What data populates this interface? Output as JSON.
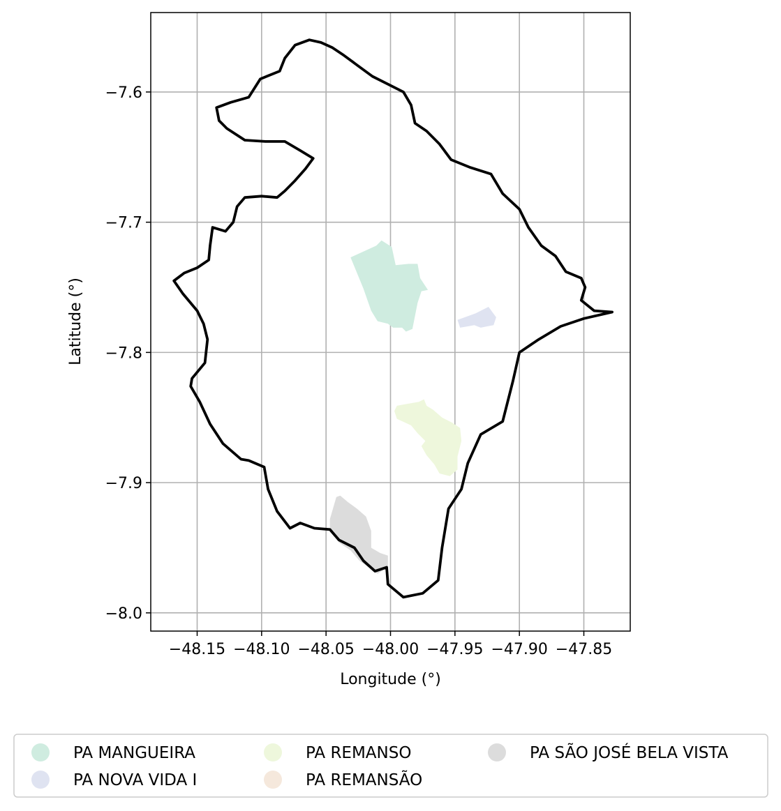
{
  "chart_data": {
    "type": "map",
    "xlabel": "Longitude (°)",
    "ylabel": "Latitude (°)",
    "xlim": [
      -48.186,
      -47.814
    ],
    "ylim": [
      -8.014,
      -7.539
    ],
    "grid": true,
    "x_ticks": [
      {
        "value": -48.15,
        "label": "−48.15"
      },
      {
        "value": -48.1,
        "label": "−48.10"
      },
      {
        "value": -48.05,
        "label": "−48.05"
      },
      {
        "value": -48.0,
        "label": "−48.00"
      },
      {
        "value": -47.95,
        "label": "−47.95"
      },
      {
        "value": -47.9,
        "label": "−47.90"
      },
      {
        "value": -47.85,
        "label": "−47.85"
      }
    ],
    "y_ticks": [
      {
        "value": -7.6,
        "label": "−7.6"
      },
      {
        "value": -7.7,
        "label": "−7.7"
      },
      {
        "value": -7.8,
        "label": "−7.8"
      },
      {
        "value": -7.9,
        "label": "−7.9"
      },
      {
        "value": -8.0,
        "label": "−8.0"
      }
    ],
    "legend_placement": "bottom",
    "boundary": {
      "color": "#000000",
      "coords": [
        [
          -48.063,
          -7.56
        ],
        [
          -48.054,
          -7.562
        ],
        [
          -48.045,
          -7.566
        ],
        [
          -48.036,
          -7.572
        ],
        [
          -48.025,
          -7.58
        ],
        [
          -48.014,
          -7.588
        ],
        [
          -48.002,
          -7.594
        ],
        [
          -47.99,
          -7.6
        ],
        [
          -47.984,
          -7.61
        ],
        [
          -47.981,
          -7.624
        ],
        [
          -47.972,
          -7.63
        ],
        [
          -47.962,
          -7.64
        ],
        [
          -47.953,
          -7.652
        ],
        [
          -47.938,
          -7.658
        ],
        [
          -47.922,
          -7.663
        ],
        [
          -47.913,
          -7.678
        ],
        [
          -47.9,
          -7.69
        ],
        [
          -47.893,
          -7.704
        ],
        [
          -47.883,
          -7.718
        ],
        [
          -47.872,
          -7.726
        ],
        [
          -47.864,
          -7.738
        ],
        [
          -47.852,
          -7.743
        ],
        [
          -47.849,
          -7.75
        ],
        [
          -47.852,
          -7.76
        ],
        [
          -47.842,
          -7.768
        ],
        [
          -47.828,
          -7.769
        ],
        [
          -47.85,
          -7.774
        ],
        [
          -47.868,
          -7.78
        ],
        [
          -47.885,
          -7.79
        ],
        [
          -47.9,
          -7.8
        ],
        [
          -47.905,
          -7.822
        ],
        [
          -47.913,
          -7.853
        ],
        [
          -47.93,
          -7.863
        ],
        [
          -47.94,
          -7.885
        ],
        [
          -47.945,
          -7.905
        ],
        [
          -47.955,
          -7.92
        ],
        [
          -47.96,
          -7.95
        ],
        [
          -47.963,
          -7.975
        ],
        [
          -47.975,
          -7.985
        ],
        [
          -47.99,
          -7.988
        ],
        [
          -48.002,
          -7.978
        ],
        [
          -48.003,
          -7.965
        ],
        [
          -48.012,
          -7.968
        ],
        [
          -48.021,
          -7.96
        ],
        [
          -48.028,
          -7.95
        ],
        [
          -48.04,
          -7.944
        ],
        [
          -48.047,
          -7.936
        ],
        [
          -48.059,
          -7.935
        ],
        [
          -48.07,
          -7.931
        ],
        [
          -48.078,
          -7.935
        ],
        [
          -48.088,
          -7.922
        ],
        [
          -48.095,
          -7.905
        ],
        [
          -48.098,
          -7.888
        ],
        [
          -48.11,
          -7.883
        ],
        [
          -48.116,
          -7.882
        ],
        [
          -48.13,
          -7.87
        ],
        [
          -48.14,
          -7.855
        ],
        [
          -48.148,
          -7.838
        ],
        [
          -48.155,
          -7.826
        ],
        [
          -48.154,
          -7.82
        ],
        [
          -48.144,
          -7.808
        ],
        [
          -48.142,
          -7.79
        ],
        [
          -48.145,
          -7.778
        ],
        [
          -48.15,
          -7.768
        ],
        [
          -48.161,
          -7.755
        ],
        [
          -48.168,
          -7.745
        ],
        [
          -48.16,
          -7.739
        ],
        [
          -48.15,
          -7.735
        ],
        [
          -48.141,
          -7.729
        ],
        [
          -48.14,
          -7.718
        ],
        [
          -48.138,
          -7.704
        ],
        [
          -48.128,
          -7.707
        ],
        [
          -48.122,
          -7.7
        ],
        [
          -48.119,
          -7.688
        ],
        [
          -48.113,
          -7.681
        ],
        [
          -48.1,
          -7.68
        ],
        [
          -48.088,
          -7.681
        ],
        [
          -48.082,
          -7.676
        ],
        [
          -48.074,
          -7.668
        ],
        [
          -48.066,
          -7.659
        ],
        [
          -48.06,
          -7.651
        ],
        [
          -48.07,
          -7.645
        ],
        [
          -48.082,
          -7.638
        ],
        [
          -48.097,
          -7.638
        ],
        [
          -48.113,
          -7.637
        ],
        [
          -48.127,
          -7.628
        ],
        [
          -48.133,
          -7.622
        ],
        [
          -48.135,
          -7.612
        ],
        [
          -48.124,
          -7.608
        ],
        [
          -48.11,
          -7.604
        ],
        [
          -48.101,
          -7.59
        ],
        [
          -48.086,
          -7.584
        ],
        [
          -48.082,
          -7.574
        ],
        [
          -48.074,
          -7.564
        ]
      ]
    },
    "series": [
      {
        "name": "PA MANGUEIRA",
        "color": "#cfece0",
        "coords": [
          [
            -48.031,
            -7.727
          ],
          [
            -48.011,
            -7.718
          ],
          [
            -48.007,
            -7.714
          ],
          [
            -47.999,
            -7.719
          ],
          [
            -47.996,
            -7.733
          ],
          [
            -47.986,
            -7.732
          ],
          [
            -47.979,
            -7.732
          ],
          [
            -47.977,
            -7.743
          ],
          [
            -47.971,
            -7.752
          ],
          [
            -47.976,
            -7.753
          ],
          [
            -47.979,
            -7.762
          ],
          [
            -47.983,
            -7.782
          ],
          [
            -47.988,
            -7.784
          ],
          [
            -47.991,
            -7.781
          ],
          [
            -47.998,
            -7.781
          ],
          [
            -48.002,
            -7.778
          ],
          [
            -48.01,
            -7.776
          ],
          [
            -48.015,
            -7.768
          ],
          [
            -48.021,
            -7.751
          ]
        ]
      },
      {
        "name": "PA NOVA VIDA I",
        "color": "#dfe3f1",
        "coords": [
          [
            -47.948,
            -7.775
          ],
          [
            -47.934,
            -7.77
          ],
          [
            -47.924,
            -7.765
          ],
          [
            -47.918,
            -7.773
          ],
          [
            -47.92,
            -7.779
          ],
          [
            -47.925,
            -7.78
          ],
          [
            -47.93,
            -7.781
          ],
          [
            -47.935,
            -7.779
          ],
          [
            -47.94,
            -7.78
          ],
          [
            -47.946,
            -7.781
          ]
        ]
      },
      {
        "name": "PA REMANSO",
        "color": "#eef7dc",
        "coords": [
          [
            -47.99,
            -7.84
          ],
          [
            -47.978,
            -7.838
          ],
          [
            -47.974,
            -7.836
          ],
          [
            -47.972,
            -7.841
          ],
          [
            -47.967,
            -7.844
          ],
          [
            -47.96,
            -7.85
          ],
          [
            -47.952,
            -7.854
          ],
          [
            -47.946,
            -7.858
          ],
          [
            -47.945,
            -7.868
          ],
          [
            -47.948,
            -7.88
          ],
          [
            -47.948,
            -7.89
          ],
          [
            -47.954,
            -7.895
          ],
          [
            -47.962,
            -7.893
          ],
          [
            -47.966,
            -7.886
          ],
          [
            -47.972,
            -7.879
          ],
          [
            -47.976,
            -7.872
          ],
          [
            -47.973,
            -7.868
          ],
          [
            -47.979,
            -7.862
          ],
          [
            -47.984,
            -7.856
          ],
          [
            -47.995,
            -7.851
          ],
          [
            -47.997,
            -7.845
          ],
          [
            -47.995,
            -7.841
          ]
        ]
      },
      {
        "name": "PA REMANSÃO",
        "color": "#f5e8dc",
        "coords": []
      },
      {
        "name": "PA SÃO JOSÉ BELA VISTA",
        "color": "#dcdcdc",
        "coords": [
          [
            -48.047,
            -7.928
          ],
          [
            -48.042,
            -7.911
          ],
          [
            -48.039,
            -7.91
          ],
          [
            -48.033,
            -7.915
          ],
          [
            -48.026,
            -7.92
          ],
          [
            -48.019,
            -7.926
          ],
          [
            -48.015,
            -7.937
          ],
          [
            -48.015,
            -7.95
          ],
          [
            -48.008,
            -7.954
          ],
          [
            -48.002,
            -7.956
          ],
          [
            -48.002,
            -7.965
          ],
          [
            -48.01,
            -7.97
          ],
          [
            -48.024,
            -7.96
          ],
          [
            -48.031,
            -7.952
          ],
          [
            -48.04,
            -7.946
          ],
          [
            -48.047,
            -7.936
          ]
        ]
      }
    ]
  }
}
